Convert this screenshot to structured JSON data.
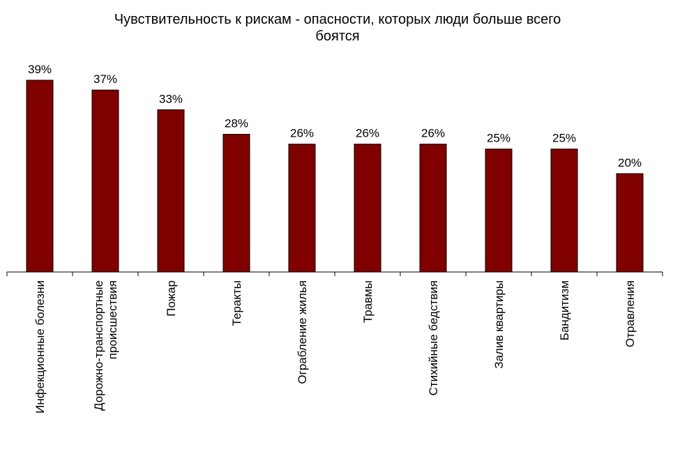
{
  "chart_data": {
    "type": "bar",
    "title_lines": [
      "Чувствительность к рискам - опасности, которых люди больше всего",
      "боятся"
    ],
    "categories": [
      [
        "Инфекционные болезни"
      ],
      [
        "Дорожно-транспортные",
        "происшествия"
      ],
      [
        "Пожар"
      ],
      [
        "Теракты"
      ],
      [
        "Ограбление жилья"
      ],
      [
        "Травмы"
      ],
      [
        "Стихийные бедствия"
      ],
      [
        "Залив квартиры"
      ],
      [
        "Бандитизм"
      ],
      [
        "Отравления"
      ]
    ],
    "values": [
      39,
      37,
      33,
      28,
      26,
      26,
      26,
      25,
      25,
      20
    ],
    "value_labels": [
      "39%",
      "37%",
      "33%",
      "28%",
      "26%",
      "26%",
      "26%",
      "25%",
      "25%",
      "20%"
    ],
    "bar_color": "#800000",
    "ylim": [
      0,
      39.5
    ],
    "grid": false,
    "legend": "none"
  }
}
